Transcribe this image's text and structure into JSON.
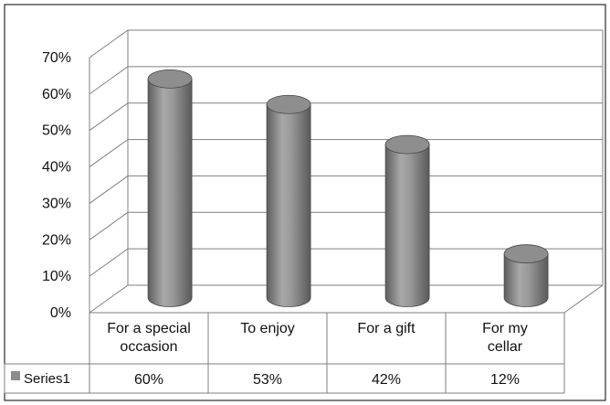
{
  "chart_data": {
    "type": "bar",
    "style": "3d-cylinder",
    "categories": [
      [
        "For a special",
        "occasion"
      ],
      [
        "To enjoy"
      ],
      [
        "For a gift"
      ],
      [
        "For my",
        "cellar"
      ]
    ],
    "series": [
      {
        "name": "Series1",
        "values": [
          60,
          53,
          42,
          12
        ],
        "value_labels": [
          "60%",
          "53%",
          "42%",
          "12%"
        ]
      }
    ],
    "y_ticks": [
      "0%",
      "10%",
      "20%",
      "30%",
      "40%",
      "50%",
      "60%",
      "70%"
    ],
    "ylim": [
      0,
      70
    ],
    "grid": true,
    "data_table": true,
    "legend_position": "data-table",
    "colors": {
      "bar": "#8c8c8c",
      "grid": "#7f7f7f",
      "border": "#000000"
    }
  }
}
